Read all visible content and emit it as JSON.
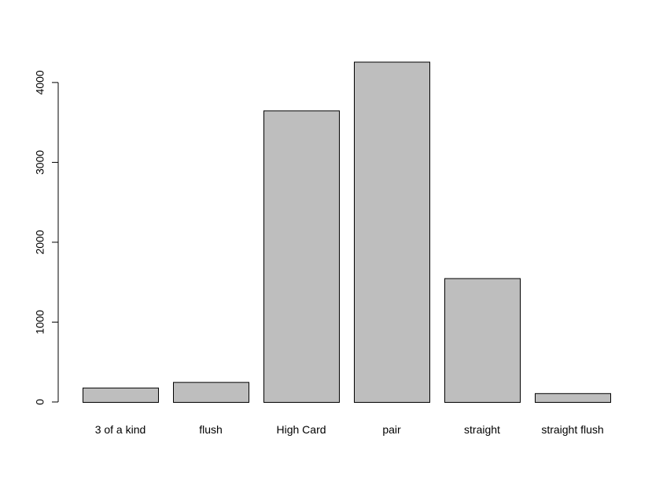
{
  "chart_data": {
    "type": "bar",
    "categories": [
      "3 of a kind",
      "flush",
      "High Card",
      "pair",
      "straight",
      "straight flush"
    ],
    "values": [
      180,
      250,
      3650,
      4260,
      1550,
      110
    ],
    "title": "",
    "xlabel": "",
    "ylabel": "",
    "ylim": [
      0,
      4260
    ],
    "yticks": [
      "0",
      "1000",
      "2000",
      "3000",
      "4000"
    ],
    "grid": false,
    "colors": {
      "bar_fill": "#bebebe",
      "bar_stroke": "#000000",
      "axis": "#000000"
    }
  }
}
